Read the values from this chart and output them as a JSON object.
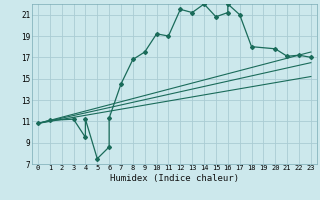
{
  "title": "",
  "xlabel": "Humidex (Indice chaleur)",
  "bg_color": "#cce8ec",
  "grid_color": "#aaccd4",
  "line_color": "#1a6b5a",
  "xlim": [
    -0.5,
    23.5
  ],
  "ylim": [
    7,
    22
  ],
  "yticks": [
    7,
    9,
    11,
    13,
    15,
    17,
    19,
    21
  ],
  "xticks": [
    0,
    1,
    2,
    3,
    4,
    5,
    6,
    7,
    8,
    9,
    10,
    11,
    12,
    13,
    14,
    15,
    16,
    17,
    18,
    19,
    20,
    21,
    22,
    23
  ],
  "curve_x": [
    0,
    1,
    3,
    4,
    4,
    5,
    6,
    6,
    7,
    8,
    9,
    10,
    11,
    12,
    13,
    14,
    15,
    16,
    16,
    17,
    18,
    20,
    21,
    22,
    23
  ],
  "curve_y": [
    10.8,
    11.1,
    11.2,
    9.5,
    11.2,
    7.5,
    8.6,
    11.3,
    14.5,
    16.8,
    17.5,
    19.2,
    19.0,
    21.5,
    21.2,
    22.0,
    20.8,
    21.2,
    22.0,
    21.0,
    18.0,
    17.8,
    17.1,
    17.2,
    17.0
  ],
  "line1_x": [
    0,
    23
  ],
  "line1_y": [
    10.8,
    17.5
  ],
  "line2_x": [
    0,
    23
  ],
  "line2_y": [
    10.8,
    16.5
  ],
  "line3_x": [
    0,
    23
  ],
  "line3_y": [
    10.8,
    15.2
  ]
}
